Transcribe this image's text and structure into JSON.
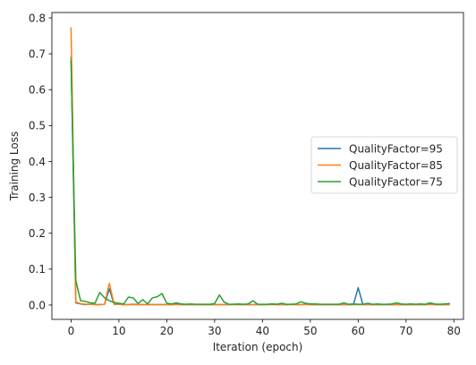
{
  "chart_data": {
    "type": "line",
    "xlabel": "Iteration (epoch)",
    "ylabel": "Training Loss",
    "xlim": [
      -4,
      82
    ],
    "ylim": [
      -0.04,
      0.815
    ],
    "xticks": [
      0,
      10,
      20,
      30,
      40,
      50,
      60,
      70,
      80
    ],
    "yticks": [
      0.0,
      0.1,
      0.2,
      0.3,
      0.4,
      0.5,
      0.6,
      0.7,
      0.8
    ],
    "xtick_labels": [
      "0",
      "10",
      "20",
      "30",
      "40",
      "50",
      "60",
      "70",
      "80"
    ],
    "ytick_labels": [
      "0.0",
      "0.1",
      "0.2",
      "0.3",
      "0.4",
      "0.5",
      "0.6",
      "0.7",
      "0.8"
    ],
    "grid": false,
    "legend_position": "center-right",
    "series": [
      {
        "name": "QualityFactor=95",
        "color": "#1f77b4",
        "x": [
          0,
          1,
          2,
          3,
          4,
          5,
          6,
          7,
          8,
          9,
          10,
          11,
          12,
          13,
          14,
          15,
          16,
          17,
          18,
          19,
          20,
          21,
          22,
          23,
          24,
          25,
          26,
          27,
          28,
          29,
          30,
          31,
          32,
          33,
          34,
          35,
          36,
          37,
          38,
          39,
          40,
          41,
          42,
          43,
          44,
          45,
          46,
          47,
          48,
          49,
          50,
          51,
          52,
          53,
          54,
          55,
          56,
          57,
          58,
          59,
          60,
          61,
          62,
          63,
          64,
          65,
          66,
          67,
          68,
          69,
          70,
          71,
          72,
          73,
          74,
          75,
          76,
          77,
          78,
          79
        ],
        "values": [
          0.69,
          0.006,
          0.003,
          0.001,
          0.002,
          0.001,
          0.001,
          0.002,
          0.045,
          0.002,
          0.002,
          0.001,
          0.001,
          0.002,
          0.001,
          0.001,
          0.001,
          0.001,
          0.001,
          0.001,
          0.001,
          0.001,
          0.002,
          0.001,
          0.001,
          0.001,
          0.001,
          0.001,
          0.001,
          0.001,
          0.001,
          0.001,
          0.001,
          0.001,
          0.002,
          0.001,
          0.001,
          0.001,
          0.001,
          0.001,
          0.001,
          0.001,
          0.003,
          0.001,
          0.001,
          0.001,
          0.002,
          0.001,
          0.001,
          0.002,
          0.001,
          0.001,
          0.001,
          0.001,
          0.001,
          0.001,
          0.001,
          0.001,
          0.001,
          0.001,
          0.048,
          0.001,
          0.001,
          0.001,
          0.001,
          0.001,
          0.001,
          0.001,
          0.001,
          0.001,
          0.001,
          0.001,
          0.001,
          0.001,
          0.001,
          0.002,
          0.001,
          0.001,
          0.001,
          0.001
        ]
      },
      {
        "name": "QualityFactor=85",
        "color": "#ff7f0e",
        "x": [
          0,
          1,
          2,
          3,
          4,
          5,
          6,
          7,
          8,
          9,
          10,
          11,
          12,
          13,
          14,
          15,
          16,
          17,
          18,
          19,
          20,
          21,
          22,
          23,
          24,
          25,
          26,
          27,
          28,
          29,
          30,
          31,
          32,
          33,
          34,
          35,
          36,
          37,
          38,
          39,
          40,
          41,
          42,
          43,
          44,
          45,
          46,
          47,
          48,
          49,
          50,
          51,
          52,
          53,
          54,
          55,
          56,
          57,
          58,
          59,
          60,
          61,
          62,
          63,
          64,
          65,
          66,
          67,
          68,
          69,
          70,
          71,
          72,
          73,
          74,
          75,
          76,
          77,
          78,
          79
        ],
        "values": [
          0.772,
          0.008,
          0.004,
          0.002,
          0.002,
          0.001,
          0.001,
          0.002,
          0.06,
          0.003,
          0.002,
          0.001,
          0.001,
          0.001,
          0.001,
          0.001,
          0.001,
          0.001,
          0.001,
          0.001,
          0.001,
          0.001,
          0.001,
          0.001,
          0.001,
          0.001,
          0.001,
          0.001,
          0.001,
          0.001,
          0.001,
          0.001,
          0.001,
          0.001,
          0.001,
          0.001,
          0.001,
          0.001,
          0.001,
          0.001,
          0.001,
          0.001,
          0.001,
          0.001,
          0.001,
          0.001,
          0.001,
          0.001,
          0.001,
          0.001,
          0.001,
          0.001,
          0.001,
          0.001,
          0.001,
          0.001,
          0.001,
          0.001,
          0.001,
          0.001,
          0.001,
          0.001,
          0.001,
          0.001,
          0.001,
          0.001,
          0.001,
          0.001,
          0.001,
          0.001,
          0.001,
          0.001,
          0.001,
          0.001,
          0.001,
          0.001,
          0.001,
          0.001,
          0.001,
          0.001
        ]
      },
      {
        "name": "QualityFactor=75",
        "color": "#2ca02c",
        "x": [
          0,
          1,
          2,
          3,
          4,
          5,
          6,
          7,
          8,
          9,
          10,
          11,
          12,
          13,
          14,
          15,
          16,
          17,
          18,
          19,
          20,
          21,
          22,
          23,
          24,
          25,
          26,
          27,
          28,
          29,
          30,
          31,
          32,
          33,
          34,
          35,
          36,
          37,
          38,
          39,
          40,
          41,
          42,
          43,
          44,
          45,
          46,
          47,
          48,
          49,
          50,
          51,
          52,
          53,
          54,
          55,
          56,
          57,
          58,
          59,
          60,
          61,
          62,
          63,
          64,
          65,
          66,
          67,
          68,
          69,
          70,
          71,
          72,
          73,
          74,
          75,
          76,
          77,
          78,
          79
        ],
        "values": [
          0.68,
          0.068,
          0.012,
          0.01,
          0.006,
          0.005,
          0.035,
          0.02,
          0.012,
          0.007,
          0.005,
          0.003,
          0.022,
          0.02,
          0.004,
          0.015,
          0.003,
          0.02,
          0.023,
          0.032,
          0.005,
          0.003,
          0.006,
          0.003,
          0.002,
          0.003,
          0.002,
          0.002,
          0.002,
          0.002,
          0.004,
          0.028,
          0.008,
          0.002,
          0.002,
          0.003,
          0.002,
          0.003,
          0.012,
          0.002,
          0.002,
          0.002,
          0.003,
          0.002,
          0.005,
          0.002,
          0.002,
          0.003,
          0.009,
          0.005,
          0.003,
          0.003,
          0.002,
          0.002,
          0.002,
          0.002,
          0.002,
          0.006,
          0.002,
          0.003,
          0.002,
          0.002,
          0.005,
          0.002,
          0.003,
          0.002,
          0.002,
          0.003,
          0.006,
          0.003,
          0.002,
          0.003,
          0.002,
          0.003,
          0.002,
          0.006,
          0.003,
          0.002,
          0.003,
          0.004
        ]
      }
    ]
  }
}
